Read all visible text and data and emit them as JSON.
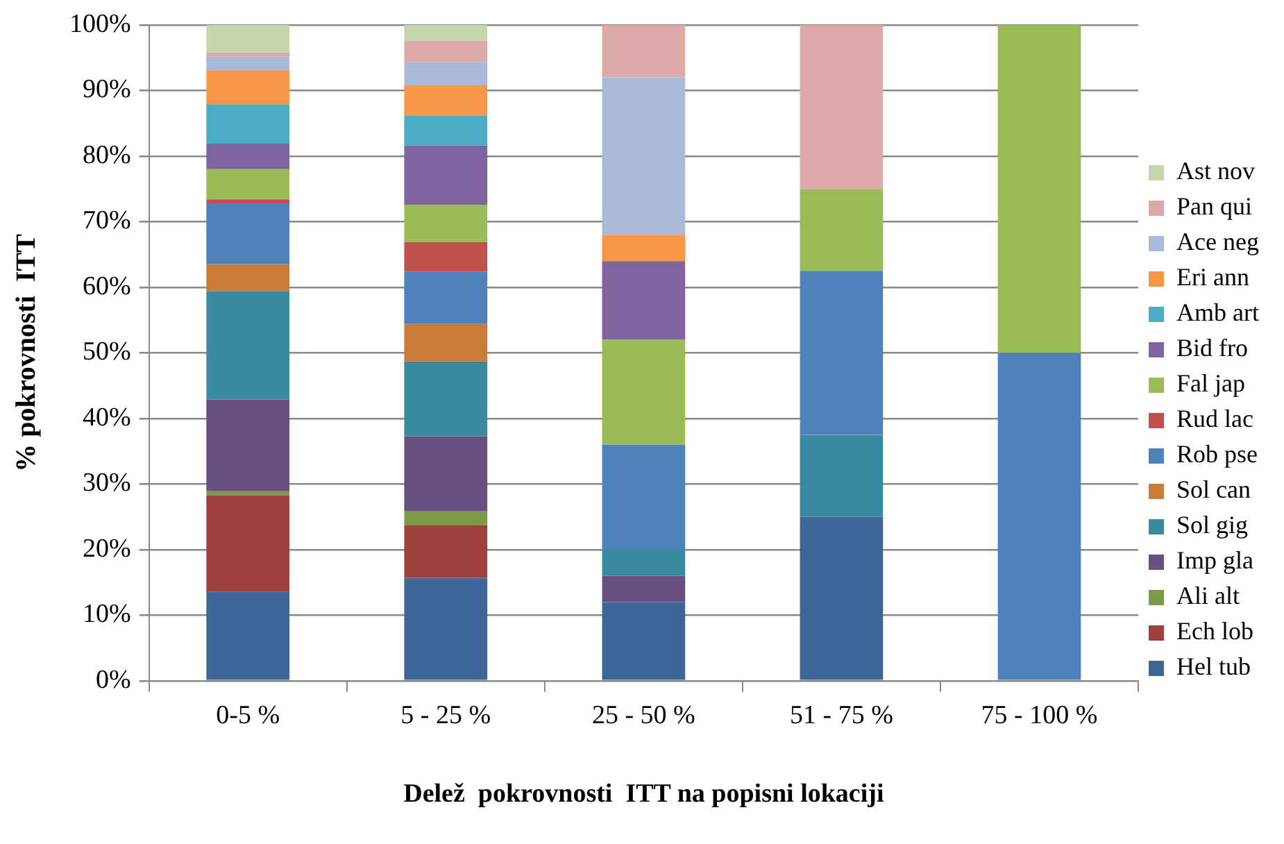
{
  "chart_data": {
    "type": "bar",
    "stacked": true,
    "xlabel": "Delež  pokrovnosti  ITT na popisni lokaciji",
    "ylabel": "% pokrovnosti  ITT",
    "categories": [
      "0-5 %",
      "5 - 25 %",
      "25 - 50 %",
      "51 - 75 %",
      "75 - 100 %"
    ],
    "ylim": [
      0,
      100
    ],
    "yticks": [
      {
        "value": 0,
        "label": "0%"
      },
      {
        "value": 10,
        "label": "10%"
      },
      {
        "value": 20,
        "label": "20%"
      },
      {
        "value": 30,
        "label": "30%"
      },
      {
        "value": 40,
        "label": "40%"
      },
      {
        "value": 50,
        "label": "50%"
      },
      {
        "value": 60,
        "label": "60%"
      },
      {
        "value": 70,
        "label": "70%"
      },
      {
        "value": 80,
        "label": "80%"
      },
      {
        "value": 90,
        "label": "90%"
      },
      {
        "value": 100,
        "label": "100%"
      }
    ],
    "grid": "y",
    "legend": "right",
    "series": [
      {
        "name": "Hel tub",
        "color": "#3e6797",
        "values": [
          13.6,
          15.7,
          12,
          25,
          0
        ]
      },
      {
        "name": "Ech lob",
        "color": "#9e413e",
        "values": [
          14.7,
          8.0,
          0,
          0,
          0
        ]
      },
      {
        "name": "Ali alt",
        "color": "#7d9a48",
        "values": [
          0.6,
          2.2,
          0,
          0,
          0
        ]
      },
      {
        "name": "Imp gla",
        "color": "#67507f",
        "values": [
          14.0,
          11.4,
          4,
          0,
          0
        ]
      },
      {
        "name": "Sol gig",
        "color": "#3a8b9f",
        "values": [
          16.5,
          11.4,
          4,
          12.5,
          0
        ]
      },
      {
        "name": "Sol can",
        "color": "#cb7b38",
        "values": [
          4.1,
          5.7,
          0,
          0,
          0
        ]
      },
      {
        "name": "Rob pse",
        "color": "#4f81bd",
        "values": [
          9.3,
          8.0,
          16,
          25,
          50
        ]
      },
      {
        "name": "Rud lac",
        "color": "#c0504d",
        "values": [
          0.6,
          4.5,
          0,
          0,
          0
        ]
      },
      {
        "name": "Fal jap",
        "color": "#9bbb59",
        "values": [
          4.6,
          5.7,
          16,
          12.5,
          50
        ]
      },
      {
        "name": "Bid fro",
        "color": "#8064a2",
        "values": [
          3.9,
          9.0,
          12,
          0,
          0
        ]
      },
      {
        "name": "Amb art",
        "color": "#4bacc6",
        "values": [
          6.0,
          4.6,
          0,
          0,
          0
        ]
      },
      {
        "name": "Eri ann",
        "color": "#f79646",
        "values": [
          5.2,
          4.6,
          4,
          0,
          0
        ]
      },
      {
        "name": "Ace neg",
        "color": "#a9b9d8",
        "values": [
          2.1,
          3.5,
          24,
          0,
          0
        ]
      },
      {
        "name": "Pan qui",
        "color": "#dba9a8",
        "values": [
          0.6,
          3.3,
          8,
          25,
          0
        ]
      },
      {
        "name": "Ast nov",
        "color": "#c6d6ac",
        "values": [
          4.2,
          2.4,
          0,
          0,
          0
        ]
      }
    ]
  }
}
